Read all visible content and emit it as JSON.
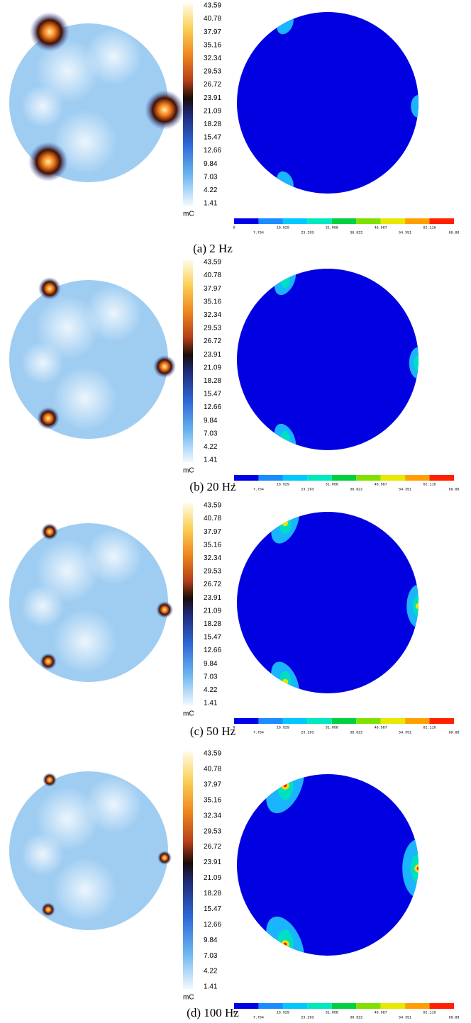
{
  "colorbar": {
    "ticks": [
      43.59,
      40.78,
      37.97,
      35.16,
      32.34,
      29.53,
      26.72,
      23.91,
      21.09,
      18.28,
      15.47,
      12.66,
      9.84,
      7.03,
      4.22,
      1.41
    ],
    "unit": "mC"
  },
  "legend": {
    "ticks": [
      0,
      7.764,
      15.529,
      23.293,
      31.058,
      38.822,
      46.587,
      54.351,
      62.116,
      69.88
    ]
  },
  "panels": [
    {
      "caption": "(a) 2 Hz"
    },
    {
      "caption": "(b) 20 Hz"
    },
    {
      "caption": "(c) 50 Hz"
    },
    {
      "caption": "(d) 100 Hz"
    }
  ]
}
